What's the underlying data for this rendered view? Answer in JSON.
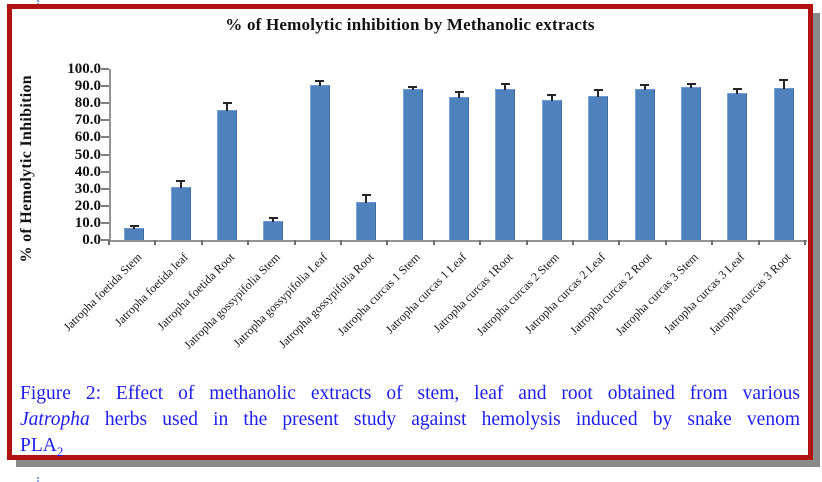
{
  "chart_data": {
    "type": "bar",
    "title": "% of Hemolytic inhibition by Methanolic extracts",
    "xlabel": "",
    "ylabel": "% of Hemolytic Inhibition",
    "ylim": [
      0,
      100
    ],
    "ytick_step": 10,
    "grid": false,
    "legend": "none",
    "bar_color": "#4f81bd",
    "error_bar_color": "#262626",
    "categories": [
      "Jatropha foetida Stem",
      "Jatropha foetida leaf",
      "Jatropha foetida Root",
      "Jatropha gossypifolia Stem",
      "Jatropha gossypifolia Leaf",
      "Jatropha gossypifolia Root",
      "Jatropha curcas 1 Stem",
      "Jatropha curcas 1 Leaf",
      "Jatropha curcas 1Root",
      "Jatropha curcas 2 Stem",
      "Jatropha curcas 2 Leaf",
      "Jatropha curcas 2 Root",
      "Jatropha curcas 3 Stem",
      "Jatropha curcas 3 Leaf",
      "Jatropha curcas 3 Root"
    ],
    "values": [
      6.5,
      30.5,
      75.5,
      10.5,
      90.0,
      21.5,
      88.0,
      83.0,
      87.5,
      81.5,
      83.5,
      87.5,
      89.0,
      85.5,
      88.5
    ],
    "errors": [
      1.0,
      3.5,
      4.0,
      2.0,
      2.5,
      4.0,
      1.0,
      3.0,
      3.0,
      3.0,
      3.5,
      2.5,
      1.5,
      2.5,
      4.5
    ]
  },
  "caption": {
    "line1": "Figure 2: Effect of methanolic extracts of stem, leaf and root obtained from various",
    "line2_italic": "Jatropha",
    "line2_rest": " herbs used in the present study against hemolysis induced by snake venom",
    "line3_base": "PLA",
    "line3_sub": "2"
  },
  "colors": {
    "frame_border": "#b11212",
    "frame_shadow": "#8a8a8a",
    "bar_fill": "#4f81bd",
    "axis_line": "#949494",
    "caption_text": "#1e1ef0",
    "title_text": "#121212"
  }
}
